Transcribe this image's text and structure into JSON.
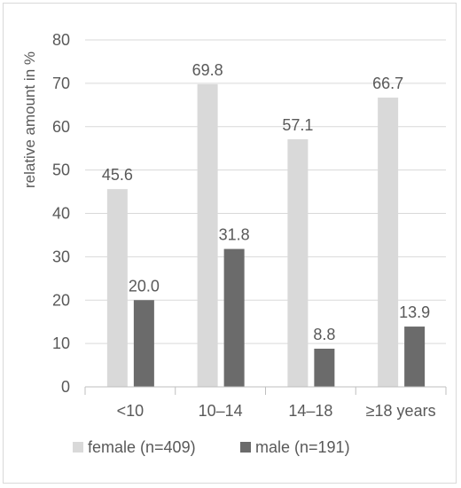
{
  "chart_data": {
    "type": "bar",
    "categories": [
      "<10",
      "10–14",
      "14–18",
      "≥18 years"
    ],
    "series": [
      {
        "name": "female (n=409)",
        "values": [
          45.6,
          69.8,
          57.1,
          66.7
        ],
        "labels": [
          "45.6",
          "69.8",
          "57.1",
          "66.7"
        ],
        "color": "#d9d9d9"
      },
      {
        "name": "male (n=191)",
        "values": [
          20.0,
          31.8,
          8.8,
          13.9
        ],
        "labels": [
          "20.0",
          "31.8",
          "8.8",
          "13.9"
        ],
        "color": "#6b6b6b"
      }
    ],
    "ylabel": "relative amount in %",
    "xlabel": "",
    "ylim": [
      0,
      80
    ],
    "yticks": [
      0,
      10,
      20,
      30,
      40,
      50,
      60,
      70,
      80
    ],
    "grid": true,
    "legend": "bottom"
  }
}
